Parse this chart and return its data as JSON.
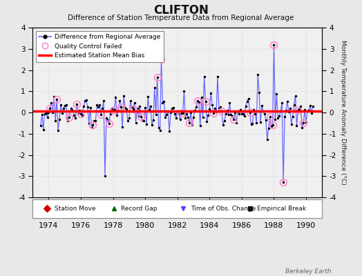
{
  "title": "CLIFTON",
  "subtitle": "Difference of Station Temperature Data from Regional Average",
  "ylabel_right": "Monthly Temperature Anomaly Difference (°C)",
  "xlim": [
    1973.0,
    1991.0
  ],
  "ylim": [
    -4,
    4
  ],
  "yticks": [
    -4,
    -3,
    -2,
    -1,
    0,
    1,
    2,
    3,
    4
  ],
  "xticks": [
    1974,
    1976,
    1978,
    1980,
    1982,
    1984,
    1986,
    1988,
    1990
  ],
  "bias_value": 0.07,
  "background_color": "#e8e8e8",
  "plot_bg_color": "#f0f0f0",
  "watermark": "Berkeley Earth",
  "line_color": "#6666ff",
  "dot_color": "#000000",
  "qc_color": "#ff88cc",
  "bias_color": "#ff0000",
  "bottom_legend": [
    {
      "label": "Station Move",
      "marker": "D",
      "color": "#cc0000"
    },
    {
      "label": "Record Gap",
      "marker": "^",
      "color": "#006600"
    },
    {
      "label": "Time of Obs. Change",
      "marker": "v",
      "color": "#4444ff"
    },
    {
      "label": "Empirical Break",
      "marker": "s",
      "color": "#111111"
    }
  ]
}
